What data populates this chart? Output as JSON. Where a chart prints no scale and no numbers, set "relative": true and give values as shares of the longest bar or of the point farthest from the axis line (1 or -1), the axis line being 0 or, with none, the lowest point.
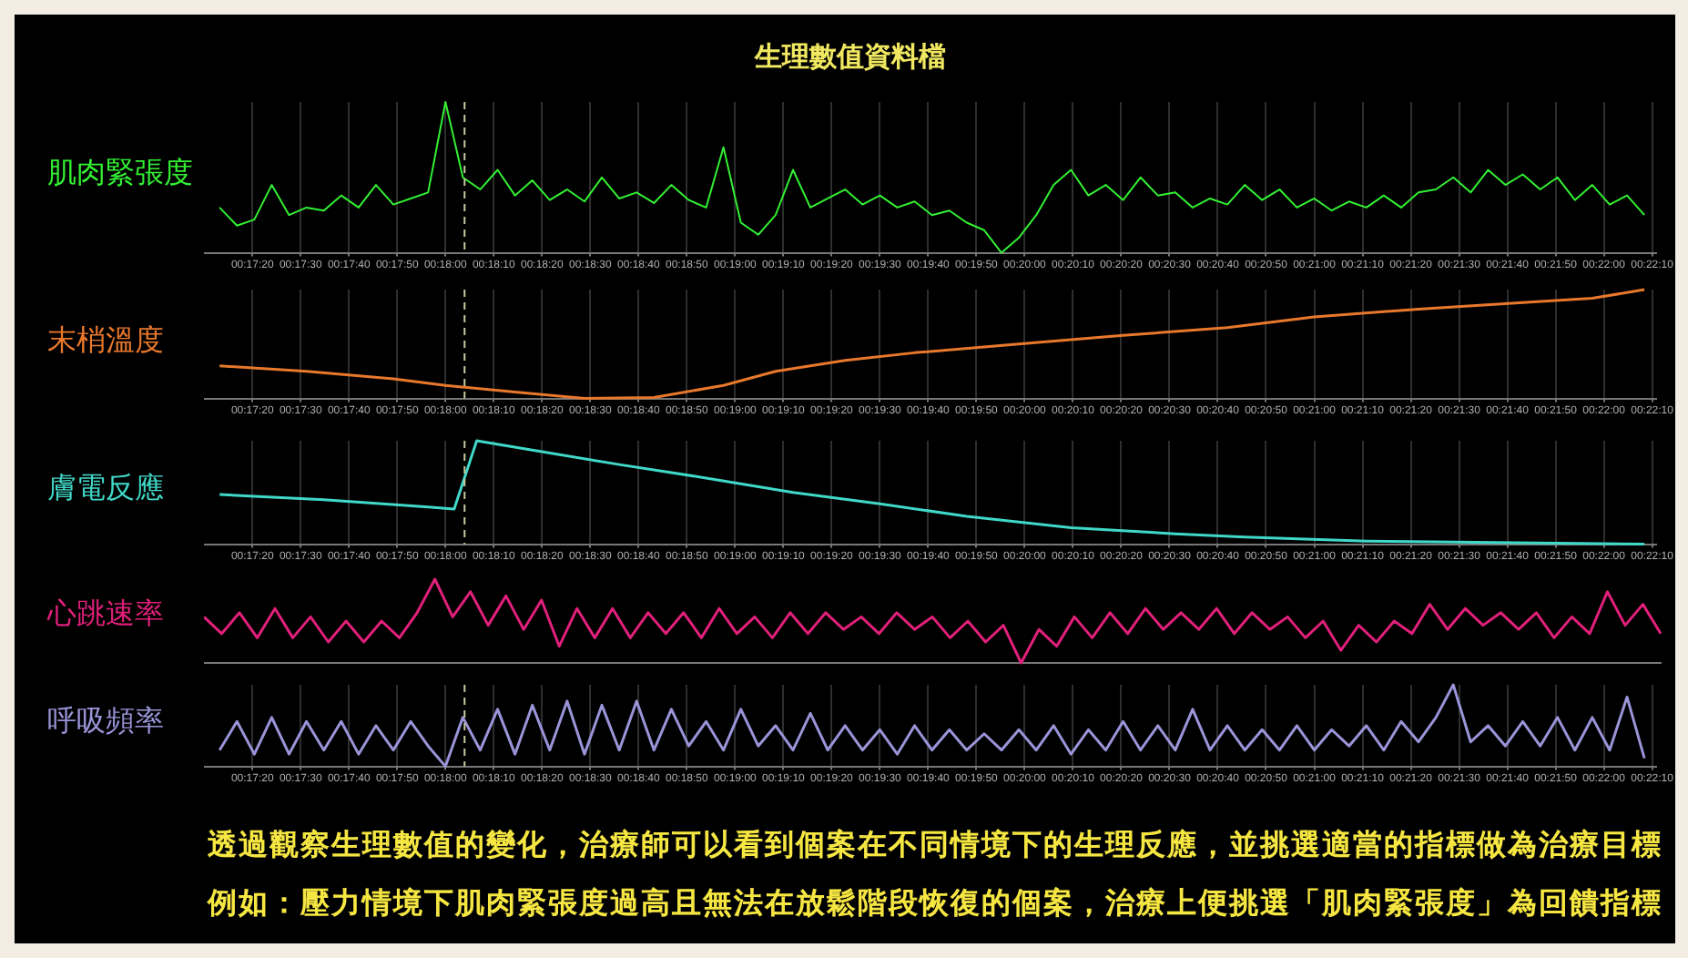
{
  "chart_data": [
    {
      "type": "line",
      "title": "生理數值資料檔",
      "ylabel": "肌肉緊張度",
      "relative": true,
      "grid": "x",
      "tick_labels": "x",
      "x": [
        0.287,
        0.288,
        0.289,
        0.29,
        0.291,
        0.292,
        0.293,
        0.294,
        0.295,
        0.296,
        0.297,
        0.298,
        0.299,
        0.3,
        0.301,
        0.302,
        0.303,
        0.304,
        0.305,
        0.306,
        0.307,
        0.308,
        0.309,
        0.31,
        0.311,
        0.312,
        0.313,
        0.314,
        0.315,
        0.316,
        0.317,
        0.318,
        0.319,
        0.32,
        0.321,
        0.322,
        0.323,
        0.324,
        0.325,
        0.326,
        0.327,
        0.328,
        0.329,
        0.33,
        0.331,
        0.332,
        0.333,
        0.334,
        0.335,
        0.336,
        0.337,
        0.338,
        0.339,
        0.34,
        0.341,
        0.342,
        0.343,
        0.344,
        0.345,
        0.346,
        0.347,
        0.348,
        0.349,
        0.35,
        0.351,
        0.352,
        0.353,
        0.354,
        0.355,
        0.356,
        0.357,
        0.358,
        0.359,
        0.36,
        0.361,
        0.362,
        0.363,
        0.364,
        0.365,
        0.366,
        0.367,
        0.368,
        0.369
      ],
      "series": [
        {
          "color": "#33f033",
          "values": [
            0.3,
            0.18,
            0.22,
            0.45,
            0.25,
            0.3,
            0.28,
            0.38,
            0.3,
            0.45,
            0.32,
            0.36,
            0.4,
            1,
            0.5,
            0.42,
            0.55,
            0.38,
            0.48,
            0.35,
            0.42,
            0.34,
            0.5,
            0.36,
            0.4,
            0.33,
            0.45,
            0.35,
            0.3,
            0.7,
            0.2,
            0.12,
            0.25,
            0.55,
            0.3,
            0.36,
            0.42,
            0.32,
            0.38,
            0.3,
            0.34,
            0.25,
            0.28,
            0.2,
            0.15,
            0,
            0.1,
            0.25,
            0.45,
            0.55,
            0.38,
            0.45,
            0.35,
            0.5,
            0.38,
            0.4,
            0.3,
            0.36,
            0.32,
            0.45,
            0.35,
            0.42,
            0.3,
            0.36,
            0.28,
            0.34,
            0.3,
            0.38,
            0.3,
            0.4,
            0.42,
            0.5,
            0.4,
            0.55,
            0.45,
            0.52,
            0.42,
            0.5,
            0.35,
            0.45,
            0.32,
            0.38,
            0.25
          ]
        }
      ],
      "xlim": [
        0.2861,
        0.3697
      ],
      "xticks": [
        {
          "value": 0.288889,
          "label": "00:17:20"
        },
        {
          "value": 0.291667,
          "label": "00:17:30"
        },
        {
          "value": 0.294444,
          "label": "00:17:40"
        },
        {
          "value": 0.297222,
          "label": "00:17:50"
        },
        {
          "value": 0.3,
          "label": "00:18:00"
        },
        {
          "value": 0.302778,
          "label": "00:18:10"
        },
        {
          "value": 0.305556,
          "label": "00:18:20"
        },
        {
          "value": 0.308333,
          "label": "00:18:30"
        },
        {
          "value": 0.311111,
          "label": "00:18:40"
        },
        {
          "value": 0.313889,
          "label": "00:18:50"
        },
        {
          "value": 0.316667,
          "label": "00:19:00"
        },
        {
          "value": 0.319444,
          "label": "00:19:10"
        },
        {
          "value": 0.322222,
          "label": "00:19:20"
        },
        {
          "value": 0.325,
          "label": "00:19:30"
        },
        {
          "value": 0.327778,
          "label": "00:19:40"
        },
        {
          "value": 0.330556,
          "label": "00:19:50"
        },
        {
          "value": 0.333333,
          "label": "00:20:00"
        },
        {
          "value": 0.336111,
          "label": "00:20:10"
        },
        {
          "value": 0.338889,
          "label": "00:20:20"
        },
        {
          "value": 0.341667,
          "label": "00:20:30"
        },
        {
          "value": 0.344444,
          "label": "00:20:40"
        },
        {
          "value": 0.347222,
          "label": "00:20:50"
        },
        {
          "value": 0.35,
          "label": "00:21:00"
        },
        {
          "value": 0.352778,
          "label": "00:21:10"
        },
        {
          "value": 0.355556,
          "label": "00:21:20"
        },
        {
          "value": 0.358333,
          "label": "00:21:30"
        },
        {
          "value": 0.361111,
          "label": "00:21:40"
        },
        {
          "value": 0.363889,
          "label": "00:21:50"
        },
        {
          "value": 0.366667,
          "label": "00:22:00"
        },
        {
          "value": 0.369444,
          "label": "00:22:10"
        }
      ],
      "ref_lines": [
        {
          "axis": "x",
          "value": 0.3011,
          "color": "#c8c8a0",
          "line_style": "dashed"
        }
      ]
    },
    {
      "type": "line",
      "ylabel": "末梢溫度",
      "relative": true,
      "grid": "x",
      "tick_labels": "x",
      "x": [
        0.287,
        0.292,
        0.297,
        0.3,
        0.304,
        0.308,
        0.312,
        0.316,
        0.319,
        0.323,
        0.327,
        0.333,
        0.339,
        0.345,
        0.35,
        0.356,
        0.362,
        0.366,
        0.369
      ],
      "series": [
        {
          "color": "#e8782c",
          "values": [
            0.3,
            0.25,
            0.18,
            0.12,
            0.06,
            0,
            0.01,
            0.12,
            0.25,
            0.35,
            0.42,
            0.5,
            0.58,
            0.65,
            0.75,
            0.82,
            0.88,
            0.92,
            1
          ]
        }
      ],
      "xlim": [
        0.2861,
        0.3697
      ],
      "xticks": [
        {
          "value": 0.288889,
          "label": "00:17:20"
        },
        {
          "value": 0.291667,
          "label": "00:17:30"
        },
        {
          "value": 0.294444,
          "label": "00:17:40"
        },
        {
          "value": 0.297222,
          "label": "00:17:50"
        },
        {
          "value": 0.3,
          "label": "00:18:00"
        },
        {
          "value": 0.302778,
          "label": "00:18:10"
        },
        {
          "value": 0.305556,
          "label": "00:18:20"
        },
        {
          "value": 0.308333,
          "label": "00:18:30"
        },
        {
          "value": 0.311111,
          "label": "00:18:40"
        },
        {
          "value": 0.313889,
          "label": "00:18:50"
        },
        {
          "value": 0.316667,
          "label": "00:19:00"
        },
        {
          "value": 0.319444,
          "label": "00:19:10"
        },
        {
          "value": 0.322222,
          "label": "00:19:20"
        },
        {
          "value": 0.325,
          "label": "00:19:30"
        },
        {
          "value": 0.327778,
          "label": "00:19:40"
        },
        {
          "value": 0.330556,
          "label": "00:19:50"
        },
        {
          "value": 0.333333,
          "label": "00:20:00"
        },
        {
          "value": 0.336111,
          "label": "00:20:10"
        },
        {
          "value": 0.338889,
          "label": "00:20:20"
        },
        {
          "value": 0.341667,
          "label": "00:20:30"
        },
        {
          "value": 0.344444,
          "label": "00:20:40"
        },
        {
          "value": 0.347222,
          "label": "00:20:50"
        },
        {
          "value": 0.35,
          "label": "00:21:00"
        },
        {
          "value": 0.352778,
          "label": "00:21:10"
        },
        {
          "value": 0.355556,
          "label": "00:21:20"
        },
        {
          "value": 0.358333,
          "label": "00:21:30"
        },
        {
          "value": 0.361111,
          "label": "00:21:40"
        },
        {
          "value": 0.363889,
          "label": "00:21:50"
        },
        {
          "value": 0.366667,
          "label": "00:22:00"
        },
        {
          "value": 0.369444,
          "label": "00:22:10"
        }
      ],
      "ref_lines": [
        {
          "axis": "x",
          "value": 0.3011,
          "color": "#c8c8a0",
          "line_style": "dashed"
        }
      ]
    },
    {
      "type": "line",
      "ylabel": "膚電反應",
      "relative": true,
      "grid": "x",
      "tick_labels": "x",
      "x": [
        0.287,
        0.293,
        0.299,
        0.3005,
        0.3018,
        0.305,
        0.31,
        0.315,
        0.32,
        0.325,
        0.33,
        0.336,
        0.342,
        0.346,
        0.353,
        0.358,
        0.369
      ],
      "series": [
        {
          "color": "#40d8c8",
          "values": [
            0.48,
            0.43,
            0.36,
            0.34,
            1,
            0.91,
            0.77,
            0.64,
            0.5,
            0.39,
            0.27,
            0.16,
            0.1,
            0.07,
            0.03,
            0.02,
            0
          ]
        }
      ],
      "xlim": [
        0.2861,
        0.3697
      ],
      "xticks": [
        {
          "value": 0.288889,
          "label": "00:17:20"
        },
        {
          "value": 0.291667,
          "label": "00:17:30"
        },
        {
          "value": 0.294444,
          "label": "00:17:40"
        },
        {
          "value": 0.297222,
          "label": "00:17:50"
        },
        {
          "value": 0.3,
          "label": "00:18:00"
        },
        {
          "value": 0.302778,
          "label": "00:18:10"
        },
        {
          "value": 0.305556,
          "label": "00:18:20"
        },
        {
          "value": 0.308333,
          "label": "00:18:30"
        },
        {
          "value": 0.311111,
          "label": "00:18:40"
        },
        {
          "value": 0.313889,
          "label": "00:18:50"
        },
        {
          "value": 0.316667,
          "label": "00:19:00"
        },
        {
          "value": 0.319444,
          "label": "00:19:10"
        },
        {
          "value": 0.322222,
          "label": "00:19:20"
        },
        {
          "value": 0.325,
          "label": "00:19:30"
        },
        {
          "value": 0.327778,
          "label": "00:19:40"
        },
        {
          "value": 0.330556,
          "label": "00:19:50"
        },
        {
          "value": 0.333333,
          "label": "00:20:00"
        },
        {
          "value": 0.336111,
          "label": "00:20:10"
        },
        {
          "value": 0.338889,
          "label": "00:20:20"
        },
        {
          "value": 0.341667,
          "label": "00:20:30"
        },
        {
          "value": 0.344444,
          "label": "00:20:40"
        },
        {
          "value": 0.347222,
          "label": "00:20:50"
        },
        {
          "value": 0.35,
          "label": "00:21:00"
        },
        {
          "value": 0.352778,
          "label": "00:21:10"
        },
        {
          "value": 0.355556,
          "label": "00:21:20"
        },
        {
          "value": 0.358333,
          "label": "00:21:30"
        },
        {
          "value": 0.361111,
          "label": "00:21:40"
        },
        {
          "value": 0.363889,
          "label": "00:21:50"
        },
        {
          "value": 0.366667,
          "label": "00:22:00"
        },
        {
          "value": 0.369444,
          "label": "00:22:10"
        }
      ],
      "ref_lines": [
        {
          "axis": "x",
          "value": 0.3011,
          "color": "#c8c8a0",
          "line_style": "dashed"
        }
      ]
    },
    {
      "type": "line",
      "ylabel": "心跳速率",
      "relative": true,
      "categories": [
        null,
        null,
        null,
        null,
        null,
        null,
        null,
        null,
        null,
        null,
        null,
        null,
        null,
        null,
        null,
        null,
        null,
        null,
        null,
        null,
        null,
        null,
        null,
        null,
        null,
        null,
        null,
        null,
        null,
        null,
        null,
        null,
        null,
        null,
        null,
        null,
        null,
        null,
        null,
        null,
        null,
        null,
        null,
        null,
        null,
        null,
        null,
        null,
        null,
        null,
        null,
        null,
        null,
        null,
        null,
        null,
        null,
        null,
        null,
        null,
        null,
        null,
        null,
        null,
        null,
        null,
        null,
        null,
        null,
        null,
        null,
        null,
        null,
        null,
        null,
        null,
        null,
        null,
        null,
        null,
        null,
        null,
        null
      ],
      "series": [
        {
          "color": "#e0207a",
          "values": [
            0.55,
            0.35,
            0.6,
            0.3,
            0.65,
            0.3,
            0.55,
            0.25,
            0.5,
            0.25,
            0.5,
            0.3,
            0.6,
            1,
            0.55,
            0.85,
            0.45,
            0.8,
            0.4,
            0.75,
            0.2,
            0.65,
            0.3,
            0.65,
            0.3,
            0.6,
            0.35,
            0.6,
            0.3,
            0.65,
            0.35,
            0.55,
            0.3,
            0.6,
            0.35,
            0.6,
            0.4,
            0.55,
            0.35,
            0.6,
            0.4,
            0.55,
            0.3,
            0.5,
            0.25,
            0.45,
            0,
            0.4,
            0.2,
            0.55,
            0.3,
            0.6,
            0.35,
            0.65,
            0.4,
            0.6,
            0.4,
            0.65,
            0.35,
            0.6,
            0.4,
            0.55,
            0.3,
            0.5,
            0.15,
            0.45,
            0.25,
            0.5,
            0.35,
            0.7,
            0.4,
            0.65,
            0.45,
            0.6,
            0.4,
            0.6,
            0.3,
            0.55,
            0.35,
            0.85,
            0.45,
            0.7,
            0.35
          ]
        }
      ]
    },
    {
      "type": "line",
      "ylabel": "呼吸頻率",
      "relative": true,
      "grid": "x",
      "tick_labels": "x",
      "x": [
        0.287,
        0.288,
        0.289,
        0.29,
        0.291,
        0.292,
        0.293,
        0.294,
        0.295,
        0.296,
        0.297,
        0.298,
        0.299,
        0.3,
        0.301,
        0.302,
        0.303,
        0.304,
        0.305,
        0.306,
        0.307,
        0.308,
        0.309,
        0.31,
        0.311,
        0.312,
        0.313,
        0.314,
        0.315,
        0.316,
        0.317,
        0.318,
        0.319,
        0.32,
        0.321,
        0.322,
        0.323,
        0.324,
        0.325,
        0.326,
        0.327,
        0.328,
        0.329,
        0.33,
        0.331,
        0.332,
        0.333,
        0.334,
        0.335,
        0.336,
        0.337,
        0.338,
        0.339,
        0.34,
        0.341,
        0.342,
        0.343,
        0.344,
        0.345,
        0.346,
        0.347,
        0.348,
        0.349,
        0.35,
        0.351,
        0.352,
        0.353,
        0.354,
        0.355,
        0.356,
        0.357,
        0.358,
        0.359,
        0.36,
        0.361,
        0.362,
        0.363,
        0.364,
        0.365,
        0.366,
        0.367,
        0.368,
        0.369
      ],
      "series": [
        {
          "color": "#9a94d8",
          "values": [
            0.2,
            0.55,
            0.15,
            0.6,
            0.15,
            0.55,
            0.2,
            0.55,
            0.15,
            0.5,
            0.2,
            0.55,
            0.25,
            0,
            0.6,
            0.2,
            0.7,
            0.15,
            0.75,
            0.2,
            0.8,
            0.15,
            0.75,
            0.2,
            0.8,
            0.2,
            0.7,
            0.25,
            0.55,
            0.2,
            0.7,
            0.25,
            0.5,
            0.2,
            0.65,
            0.2,
            0.5,
            0.2,
            0.45,
            0.15,
            0.5,
            0.2,
            0.45,
            0.2,
            0.4,
            0.2,
            0.45,
            0.2,
            0.5,
            0.15,
            0.45,
            0.2,
            0.55,
            0.2,
            0.5,
            0.2,
            0.7,
            0.2,
            0.5,
            0.2,
            0.45,
            0.2,
            0.5,
            0.2,
            0.45,
            0.25,
            0.5,
            0.2,
            0.55,
            0.3,
            0.6,
            1,
            0.3,
            0.5,
            0.25,
            0.55,
            0.25,
            0.6,
            0.2,
            0.6,
            0.2,
            0.85,
            0.1
          ]
        }
      ],
      "xlim": [
        0.2861,
        0.3697
      ],
      "xticks": [
        {
          "value": 0.288889,
          "label": "00:17:20"
        },
        {
          "value": 0.291667,
          "label": "00:17:30"
        },
        {
          "value": 0.294444,
          "label": "00:17:40"
        },
        {
          "value": 0.297222,
          "label": "00:17:50"
        },
        {
          "value": 0.3,
          "label": "00:18:00"
        },
        {
          "value": 0.302778,
          "label": "00:18:10"
        },
        {
          "value": 0.305556,
          "label": "00:18:20"
        },
        {
          "value": 0.308333,
          "label": "00:18:30"
        },
        {
          "value": 0.311111,
          "label": "00:18:40"
        },
        {
          "value": 0.313889,
          "label": "00:18:50"
        },
        {
          "value": 0.316667,
          "label": "00:19:00"
        },
        {
          "value": 0.319444,
          "label": "00:19:10"
        },
        {
          "value": 0.322222,
          "label": "00:19:20"
        },
        {
          "value": 0.325,
          "label": "00:19:30"
        },
        {
          "value": 0.327778,
          "label": "00:19:40"
        },
        {
          "value": 0.330556,
          "label": "00:19:50"
        },
        {
          "value": 0.333333,
          "label": "00:20:00"
        },
        {
          "value": 0.336111,
          "label": "00:20:10"
        },
        {
          "value": 0.338889,
          "label": "00:20:20"
        },
        {
          "value": 0.341667,
          "label": "00:20:30"
        },
        {
          "value": 0.344444,
          "label": "00:20:40"
        },
        {
          "value": 0.347222,
          "label": "00:20:50"
        },
        {
          "value": 0.35,
          "label": "00:21:00"
        },
        {
          "value": 0.352778,
          "label": "00:21:10"
        },
        {
          "value": 0.355556,
          "label": "00:21:20"
        },
        {
          "value": 0.358333,
          "label": "00:21:30"
        },
        {
          "value": 0.361111,
          "label": "00:21:40"
        },
        {
          "value": 0.363889,
          "label": "00:21:50"
        },
        {
          "value": 0.366667,
          "label": "00:22:00"
        },
        {
          "value": 0.369444,
          "label": "00:22:10"
        }
      ],
      "ref_lines": [
        {
          "axis": "x",
          "value": 0.3011,
          "color": "#c8c8a0",
          "line_style": "dashed"
        }
      ],
      "annotations": [
        "透過觀察生理數值的變化，治療師可以看到個案在不同情境下的生理反應，並挑選適當的指標做為治療目標",
        "例如：壓力情境下肌肉緊張度過高且無法在放鬆階段恢復的個案，治療上便挑選「肌肉緊張度」為回饋指標"
      ]
    }
  ]
}
